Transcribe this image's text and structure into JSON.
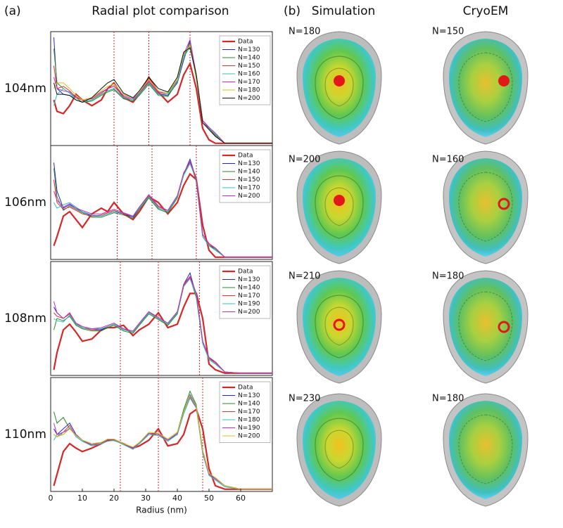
{
  "figure": {
    "panel_a_label": "(a)",
    "panel_a_title": "Radial plot comparison",
    "panel_b_label": "(b)",
    "columns": [
      "Simulation",
      "CryoEM"
    ],
    "images": [
      {
        "simulation": "N=180",
        "cryoem": "N=150"
      },
      {
        "simulation": "N=200",
        "cryoem": "N=160"
      },
      {
        "simulation": "N=210",
        "cryoem": "N=180"
      },
      {
        "simulation": "N=230",
        "cryoem": "N=180"
      }
    ]
  },
  "chart_data": [
    {
      "type": "line",
      "title": "104nm",
      "xlim": [
        0,
        70
      ],
      "ylim": [
        0,
        1
      ],
      "vlines": [
        20,
        31,
        44
      ],
      "x": [
        1,
        2,
        4,
        6,
        8,
        10,
        13,
        16,
        18,
        20,
        23,
        26,
        28,
        31,
        34,
        37,
        40,
        42,
        44,
        46,
        48,
        50,
        52,
        55,
        60,
        70
      ],
      "series": [
        {
          "name": "Data",
          "color": "#d62728",
          "values": [
            0.4,
            0.3,
            0.28,
            0.35,
            0.45,
            0.4,
            0.35,
            0.4,
            0.5,
            0.55,
            0.42,
            0.38,
            0.45,
            0.6,
            0.47,
            0.38,
            0.45,
            0.62,
            0.72,
            0.5,
            0.15,
            0.05,
            0.02,
            0.02,
            0.02,
            0.02
          ]
        },
        {
          "name": "N=130",
          "color": "#2424d0",
          "values": [
            0.95,
            0.5,
            0.45,
            0.44,
            0.4,
            0.38,
            0.4,
            0.45,
            0.48,
            0.5,
            0.42,
            0.4,
            0.45,
            0.55,
            0.45,
            0.44,
            0.55,
            0.75,
            0.92,
            0.6,
            0.22,
            0.15,
            0.1,
            0.02,
            0.02,
            0.02
          ]
        },
        {
          "name": "N=140",
          "color": "#2a8a2a",
          "values": [
            0.85,
            0.55,
            0.5,
            0.46,
            0.42,
            0.38,
            0.39,
            0.44,
            0.47,
            0.49,
            0.41,
            0.39,
            0.44,
            0.54,
            0.44,
            0.43,
            0.56,
            0.78,
            0.9,
            0.58,
            0.2,
            0.14,
            0.09,
            0.02,
            0.02,
            0.02
          ]
        },
        {
          "name": "N=150",
          "color": "#e03030",
          "values": [
            0.7,
            0.5,
            0.52,
            0.48,
            0.42,
            0.4,
            0.41,
            0.46,
            0.5,
            0.52,
            0.43,
            0.4,
            0.46,
            0.56,
            0.46,
            0.45,
            0.57,
            0.8,
            0.88,
            0.62,
            0.22,
            0.16,
            0.08,
            0.02,
            0.02,
            0.02
          ]
        },
        {
          "name": "N=160",
          "color": "#30bfbf",
          "values": [
            0.35,
            0.45,
            0.5,
            0.46,
            0.4,
            0.38,
            0.4,
            0.45,
            0.48,
            0.5,
            0.42,
            0.4,
            0.45,
            0.55,
            0.45,
            0.45,
            0.56,
            0.78,
            0.86,
            0.6,
            0.2,
            0.15,
            0.1,
            0.02,
            0.02,
            0.02
          ]
        },
        {
          "name": "N=170",
          "color": "#bf30bf",
          "values": [
            0.6,
            0.5,
            0.48,
            0.47,
            0.43,
            0.4,
            0.42,
            0.47,
            0.5,
            0.52,
            0.44,
            0.41,
            0.46,
            0.57,
            0.47,
            0.46,
            0.58,
            0.8,
            0.93,
            0.62,
            0.22,
            0.16,
            0.11,
            0.02,
            0.02,
            0.02
          ]
        },
        {
          "name": "N=180",
          "color": "#c8c820",
          "values": [
            0.5,
            0.55,
            0.55,
            0.5,
            0.44,
            0.4,
            0.42,
            0.48,
            0.52,
            0.54,
            0.45,
            0.42,
            0.47,
            0.58,
            0.48,
            0.46,
            0.58,
            0.8,
            0.88,
            0.6,
            0.2,
            0.14,
            0.08,
            0.02,
            0.02,
            0.02
          ]
        },
        {
          "name": "N=200",
          "color": "#111111",
          "values": [
            0.55,
            0.45,
            0.45,
            0.44,
            0.4,
            0.38,
            0.42,
            0.5,
            0.55,
            0.58,
            0.46,
            0.42,
            0.48,
            0.6,
            0.5,
            0.47,
            0.6,
            0.82,
            0.86,
            0.62,
            0.2,
            0.14,
            0.08,
            0.02,
            0.02,
            0.02
          ]
        }
      ]
    },
    {
      "type": "line",
      "title": "106nm",
      "xlim": [
        0,
        70
      ],
      "ylim": [
        0,
        1
      ],
      "vlines": [
        21,
        32,
        46
      ],
      "x": [
        1,
        2,
        4,
        6,
        8,
        10,
        13,
        16,
        18,
        20,
        23,
        26,
        28,
        31,
        34,
        37,
        40,
        42,
        44,
        46,
        48,
        50,
        52,
        55,
        60,
        70
      ],
      "series": [
        {
          "name": "Data",
          "color": "#d62728",
          "values": [
            0.12,
            0.2,
            0.38,
            0.42,
            0.35,
            0.28,
            0.4,
            0.45,
            0.42,
            0.5,
            0.4,
            0.35,
            0.42,
            0.55,
            0.5,
            0.4,
            0.5,
            0.65,
            0.75,
            0.7,
            0.3,
            0.08,
            0.02,
            0.02,
            0.02,
            0.02
          ]
        },
        {
          "name": "N=130",
          "color": "#2424d0",
          "values": [
            0.85,
            0.6,
            0.45,
            0.48,
            0.45,
            0.42,
            0.38,
            0.38,
            0.4,
            0.42,
            0.4,
            0.37,
            0.45,
            0.55,
            0.45,
            0.42,
            0.55,
            0.75,
            0.88,
            0.7,
            0.2,
            0.12,
            0.1,
            0.02,
            0.02,
            0.02
          ]
        },
        {
          "name": "N=140",
          "color": "#2a8a2a",
          "values": [
            0.8,
            0.55,
            0.43,
            0.47,
            0.44,
            0.41,
            0.37,
            0.37,
            0.39,
            0.41,
            0.39,
            0.36,
            0.44,
            0.54,
            0.44,
            0.41,
            0.54,
            0.74,
            0.86,
            0.68,
            0.2,
            0.12,
            0.09,
            0.02,
            0.02,
            0.02
          ]
        },
        {
          "name": "N=150",
          "color": "#e03030",
          "values": [
            0.7,
            0.5,
            0.44,
            0.46,
            0.43,
            0.4,
            0.38,
            0.39,
            0.41,
            0.43,
            0.4,
            0.38,
            0.46,
            0.56,
            0.46,
            0.43,
            0.56,
            0.76,
            0.85,
            0.72,
            0.22,
            0.13,
            0.1,
            0.02,
            0.02,
            0.02
          ]
        },
        {
          "name": "N=170",
          "color": "#30bfbf",
          "values": [
            0.5,
            0.45,
            0.48,
            0.5,
            0.46,
            0.42,
            0.39,
            0.38,
            0.4,
            0.42,
            0.41,
            0.38,
            0.45,
            0.55,
            0.45,
            0.42,
            0.55,
            0.74,
            0.84,
            0.7,
            0.2,
            0.12,
            0.08,
            0.02,
            0.02,
            0.02
          ]
        },
        {
          "name": "N=200",
          "color": "#bf30bf",
          "values": [
            0.6,
            0.52,
            0.46,
            0.49,
            0.45,
            0.43,
            0.4,
            0.4,
            0.42,
            0.44,
            0.41,
            0.38,
            0.46,
            0.57,
            0.47,
            0.43,
            0.56,
            0.76,
            0.86,
            0.7,
            0.22,
            0.14,
            0.1,
            0.02,
            0.02,
            0.02
          ]
        }
      ]
    },
    {
      "type": "line",
      "title": "108nm",
      "xlim": [
        0,
        70
      ],
      "ylim": [
        0,
        1
      ],
      "vlines": [
        22,
        34,
        47
      ],
      "x": [
        1,
        2,
        4,
        6,
        8,
        10,
        13,
        16,
        18,
        20,
        23,
        26,
        28,
        31,
        34,
        37,
        40,
        42,
        44,
        46,
        48,
        50,
        52,
        55,
        60,
        70
      ],
      "series": [
        {
          "name": "Data",
          "color": "#d62728",
          "values": [
            0.05,
            0.2,
            0.4,
            0.45,
            0.38,
            0.3,
            0.32,
            0.4,
            0.42,
            0.42,
            0.44,
            0.35,
            0.4,
            0.45,
            0.55,
            0.42,
            0.45,
            0.6,
            0.72,
            0.72,
            0.5,
            0.1,
            0.05,
            0.02,
            0.02,
            0.02
          ]
        },
        {
          "name": "N=130",
          "color": "#2424d0",
          "values": [
            0.6,
            0.55,
            0.5,
            0.55,
            0.45,
            0.42,
            0.4,
            0.4,
            0.43,
            0.45,
            0.4,
            0.38,
            0.45,
            0.55,
            0.5,
            0.45,
            0.55,
            0.8,
            0.9,
            0.7,
            0.3,
            0.15,
            0.12,
            0.03,
            0.02,
            0.02
          ]
        },
        {
          "name": "N=140",
          "color": "#2a8a2a",
          "values": [
            0.4,
            0.5,
            0.48,
            0.52,
            0.44,
            0.41,
            0.39,
            0.39,
            0.42,
            0.44,
            0.39,
            0.37,
            0.44,
            0.54,
            0.49,
            0.44,
            0.54,
            0.78,
            0.86,
            0.68,
            0.28,
            0.14,
            0.1,
            0.03,
            0.02,
            0.02
          ]
        },
        {
          "name": "N=170",
          "color": "#e03030",
          "values": [
            0.55,
            0.52,
            0.5,
            0.54,
            0.46,
            0.42,
            0.4,
            0.41,
            0.43,
            0.45,
            0.41,
            0.38,
            0.45,
            0.56,
            0.5,
            0.45,
            0.56,
            0.8,
            0.87,
            0.72,
            0.3,
            0.15,
            0.11,
            0.03,
            0.02,
            0.02
          ]
        },
        {
          "name": "N=190",
          "color": "#30bfbf",
          "values": [
            0.5,
            0.48,
            0.47,
            0.53,
            0.45,
            0.42,
            0.41,
            0.41,
            0.43,
            0.45,
            0.4,
            0.38,
            0.45,
            0.55,
            0.5,
            0.45,
            0.55,
            0.78,
            0.85,
            0.7,
            0.28,
            0.14,
            0.1,
            0.03,
            0.02,
            0.02
          ]
        },
        {
          "name": "N=200",
          "color": "#bf30bf",
          "values": [
            0.65,
            0.55,
            0.5,
            0.55,
            0.46,
            0.43,
            0.41,
            0.42,
            0.44,
            0.46,
            0.41,
            0.39,
            0.46,
            0.56,
            0.51,
            0.46,
            0.56,
            0.79,
            0.86,
            0.72,
            0.3,
            0.16,
            0.12,
            0.03,
            0.02,
            0.02
          ]
        }
      ]
    },
    {
      "type": "line",
      "title": "110nm",
      "xlim": [
        0,
        70
      ],
      "ylim": [
        0,
        1
      ],
      "vlines": [
        22,
        34,
        48
      ],
      "x_label": "Radius (nm)",
      "xticks": [
        0,
        10,
        20,
        30,
        40,
        50,
        60
      ],
      "x": [
        1,
        2,
        4,
        6,
        8,
        10,
        13,
        16,
        18,
        20,
        23,
        26,
        28,
        31,
        34,
        37,
        40,
        42,
        44,
        46,
        48,
        50,
        52,
        55,
        60,
        70
      ],
      "series": [
        {
          "name": "Data",
          "color": "#d62728",
          "values": [
            0.05,
            0.15,
            0.35,
            0.42,
            0.38,
            0.35,
            0.38,
            0.42,
            0.45,
            0.45,
            0.42,
            0.38,
            0.4,
            0.45,
            0.55,
            0.4,
            0.42,
            0.5,
            0.68,
            0.72,
            0.55,
            0.2,
            0.05,
            0.02,
            0.02,
            0.02
          ]
        },
        {
          "name": "N=130",
          "color": "#2424d0",
          "values": [
            0.55,
            0.5,
            0.55,
            0.6,
            0.5,
            0.45,
            0.4,
            0.42,
            0.45,
            0.45,
            0.42,
            0.38,
            0.42,
            0.5,
            0.5,
            0.45,
            0.5,
            0.7,
            0.85,
            0.75,
            0.35,
            0.15,
            0.12,
            0.05,
            0.02,
            0.02
          ]
        },
        {
          "name": "N=140",
          "color": "#2a8a2a",
          "values": [
            0.7,
            0.6,
            0.65,
            0.55,
            0.5,
            0.45,
            0.42,
            0.43,
            0.46,
            0.46,
            0.42,
            0.38,
            0.43,
            0.51,
            0.51,
            0.46,
            0.52,
            0.72,
            0.88,
            0.76,
            0.36,
            0.16,
            0.12,
            0.05,
            0.02,
            0.02
          ]
        },
        {
          "name": "N=170",
          "color": "#e03030",
          "values": [
            0.5,
            0.48,
            0.52,
            0.58,
            0.48,
            0.44,
            0.41,
            0.42,
            0.45,
            0.45,
            0.42,
            0.38,
            0.42,
            0.5,
            0.5,
            0.45,
            0.51,
            0.7,
            0.84,
            0.74,
            0.34,
            0.15,
            0.11,
            0.05,
            0.02,
            0.02
          ]
        },
        {
          "name": "N=180",
          "color": "#30bfbf",
          "values": [
            0.45,
            0.5,
            0.5,
            0.56,
            0.48,
            0.44,
            0.4,
            0.42,
            0.44,
            0.45,
            0.41,
            0.37,
            0.42,
            0.5,
            0.49,
            0.44,
            0.5,
            0.68,
            0.82,
            0.73,
            0.33,
            0.14,
            0.1,
            0.04,
            0.02,
            0.02
          ]
        },
        {
          "name": "N=190",
          "color": "#bf30bf",
          "values": [
            0.6,
            0.5,
            0.52,
            0.55,
            0.5,
            0.45,
            0.41,
            0.43,
            0.45,
            0.46,
            0.42,
            0.38,
            0.43,
            0.51,
            0.5,
            0.45,
            0.51,
            0.7,
            0.83,
            0.74,
            0.34,
            0.15,
            0.11,
            0.05,
            0.02,
            0.02
          ]
        },
        {
          "name": "N=200",
          "color": "#c8c820",
          "values": [
            0.5,
            0.48,
            0.5,
            0.55,
            0.49,
            0.45,
            0.42,
            0.43,
            0.46,
            0.46,
            0.42,
            0.39,
            0.43,
            0.52,
            0.51,
            0.46,
            0.52,
            0.7,
            0.84,
            0.75,
            0.35,
            0.16,
            0.12,
            0.05,
            0.02,
            0.02
          ]
        }
      ]
    }
  ]
}
